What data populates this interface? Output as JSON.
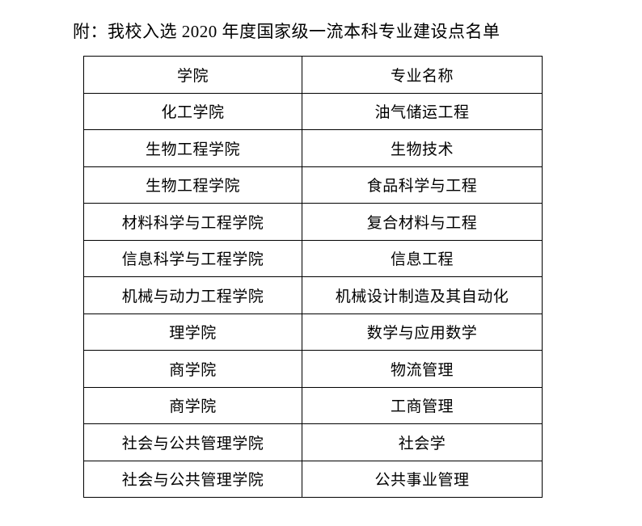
{
  "page": {
    "title": "附：我校入选 2020 年度国家级一流本科专业建设点名单"
  },
  "table": {
    "columns": [
      "学院",
      "专业名称"
    ],
    "rows": [
      [
        "化工学院",
        "油气储运工程"
      ],
      [
        "生物工程学院",
        "生物技术"
      ],
      [
        "生物工程学院",
        "食品科学与工程"
      ],
      [
        "材料科学与工程学院",
        "复合材料与工程"
      ],
      [
        "信息科学与工程学院",
        "信息工程"
      ],
      [
        "机械与动力工程学院",
        "机械设计制造及其自动化"
      ],
      [
        "理学院",
        "数学与应用数学"
      ],
      [
        "商学院",
        "物流管理"
      ],
      [
        "商学院",
        "工商管理"
      ],
      [
        "社会与公共管理学院",
        "社会学"
      ],
      [
        "社会与公共管理学院",
        "公共事业管理"
      ]
    ]
  },
  "colors": {
    "background": "#ffffff",
    "text": "#000000",
    "border": "#000000"
  }
}
